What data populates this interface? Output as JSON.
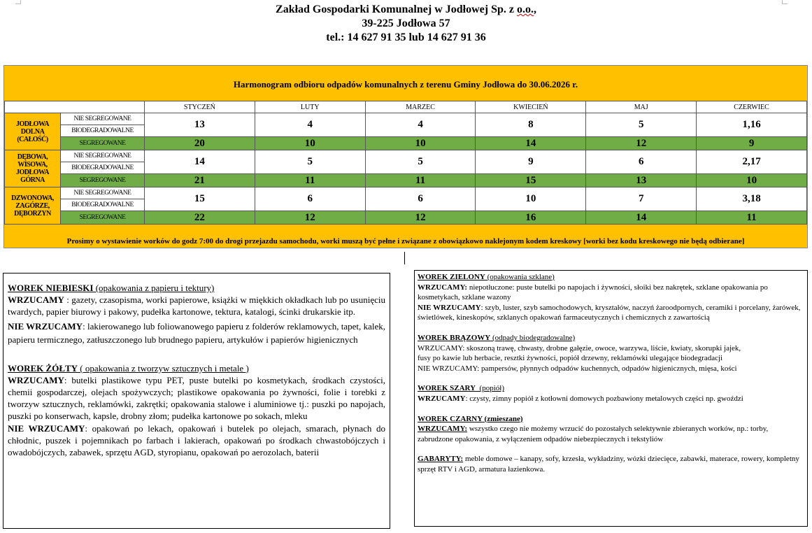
{
  "header": {
    "line1_a": "Zakład Gospodarki Komunalnej w Jodłowej Sp. z ",
    "line1_b": "o.o.",
    "line1_c": ",",
    "line2": "39-225 Jodłowa 57",
    "line3": "tel.: 14 627 91 35 lub 14 627 91 36"
  },
  "schedule": {
    "title": "Harmonogram odbioru odpadów komunalnych z terenu Gminy Jodłowa do 30.06.2026 r.",
    "months": [
      "STYCZEŃ",
      "LUTY",
      "MARZEC",
      "KWIECIEŃ",
      "MAJ",
      "CZERWIEC"
    ],
    "types": {
      "mixed": "NIE SEGREGOWANE",
      "bio": "BIODEGRADOWALNE",
      "seg": "SEGREGOWANE"
    },
    "regions": [
      {
        "name": "JODŁOWA DOLNA (CAŁOŚĆ)",
        "mixed": [
          "13",
          "4",
          "4",
          "8",
          "5",
          "1,16"
        ],
        "seg": [
          "20",
          "10",
          "10",
          "14",
          "12",
          "9"
        ]
      },
      {
        "name": "DĘBOWA, WISOWA, JODŁOWA GÓRNA",
        "mixed": [
          "14",
          "5",
          "5",
          "9",
          "6",
          "2,17"
        ],
        "seg": [
          "21",
          "11",
          "11",
          "15",
          "13",
          "10"
        ]
      },
      {
        "name": "DZWONOWA, ZAGÓRZE, DĘBORZYN",
        "mixed": [
          "15",
          "6",
          "6",
          "10",
          "7",
          "3,18"
        ],
        "seg": [
          "22",
          "12",
          "12",
          "16",
          "14",
          "11"
        ]
      }
    ],
    "footer": "Prosimy o wystawienie worków do godz 7:00 do drogi przejazdu samochodu, worki muszą być pełne i związane z obowiązkowo naklejonym kodem kreskowy [worki bez kodu kreskowego nie będą odbierane]",
    "colors": {
      "orange": "#ffc000",
      "green": "#70ad47"
    }
  },
  "left": {
    "blue": {
      "title": "WOREK NIEBIESKI",
      "sub": " (opakowania z papieru i tektury)",
      "in_label": "WRZUCAMY",
      "in": " : gazety, czasopisma, worki papierowe, książki w miękkich okładkach lub po usunięciu twardych, papier biurowy i pakowy, pudełka kartonowe, tektura, katalogi, ścinki drukarskie itp.",
      "out_label": "NIE WRZUCAMY",
      "out": ": lakierowanego lub foliowanowego papieru z folderów reklamowych, tapet, kalek, papieru termicznego, zatłuszczonego lub brudnego papieru, artykułów i papierów higienicznych"
    },
    "yellow": {
      "title": "WOREK ŻÓŁTY",
      "sub": " ( opakowania z tworzyw sztucznych i metale )",
      "in_label": "WRZUCAMY",
      "in": ": butelki plastikowe typu PET, puste butelki po kosmetykach, środkach czystości, chemii gospodarczej, olejach spożywczych; plastikowe opakowania po żywności, folie i torebki z tworzyw sztucznych, reklamówki, zakrętki; opakowania stalowe i aluminiowe tj.: puszki po napojach, puszki po konserwach, kapsle, drobny złom; pudełka kartonowe po sokach, mleku",
      "out_label": "NIE WRZUCAMY",
      "out": ": opakowań po lekach, opakowań i butelek po olejach, smarach, płynach do chłodnic, puszek i pojemnikach po farbach i lakierach, opakowań po środkach chwastobójczych i owadobójczych, zabawek, sprzętu AGD, styropianu, opakowań po aerozolach, baterii"
    }
  },
  "right": {
    "green": {
      "title": "WOREK ZIELONY",
      "sub": " (opakowania szklane)",
      "in_label": "WRZUCAMY:",
      "in": " niepotłuczone: puste butelki po napojach i żywności, słoiki bez nakrętek, szklane opakowania po kosmetykach, szklane wazony",
      "out_label": "NIE WRZUCAMY",
      "out": ": szyb, luster, szyb samochodowych, kryształów, naczyń żaroodpornych, ceramiki i porcelany, żarówek, świetlówek, kineskopów, szklanych opakowań farmaceutycznych i chemicznych z zawartością"
    },
    "brown": {
      "title": "WOREK BRĄZOWY",
      "sub": " (odpady biodegradowalne)",
      "in": "WRZUCAMY: skoszoną trawę, chwasty, drobne gałęzie, owoce, warzywa, liście, kwiaty, skorupki jajek, fusy po kawie lub herbacie, resztki żywności, popiół drzewny, reklamówki ulegające biodegradacji",
      "out": "NIE WRZUCAMY: pampersów, płynnych odpadów kuchennych, odpadów higienicznych, mięsa, kości"
    },
    "grey": {
      "title": "WOREK SZARY",
      "sub": "  (popiół)",
      "in_label": "WRZUCAMY",
      "in": ": czysty, zimny popiół z kotłowni domowych pozbawiony metalowych części np. gwoździ"
    },
    "black": {
      "title": "WOREK CZARNY",
      "sub": " (zmieszane)",
      "in_label": "WRZUCAMY:",
      "in": "  wszystko czego nie możemy wrzucić do pozostałych selektywnie zbieranych worków, np.: torby, zabrudzone opakowania, z wyłączeniem odpadów niebezpiecznych i tekstyliów"
    },
    "bulky": {
      "label": "GABARYTY:",
      "text": "  meble domowe – kanapy, sofy, krzesła, wykładziny, wózki dziecięce, zabawki, materace, rowery, kompletny sprzęt RTV i AGD, armatura łazienkowa."
    }
  }
}
